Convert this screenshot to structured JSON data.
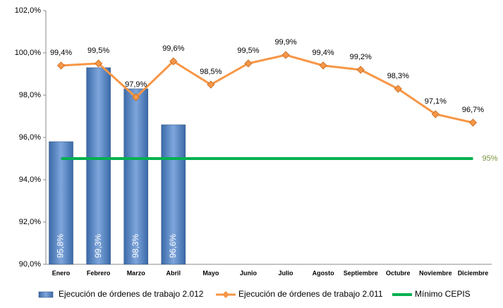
{
  "chart_data": {
    "type": "bar",
    "categories": [
      "Enero",
      "Febrero",
      "Marzo",
      "Abril",
      "Mayo",
      "Junio",
      "Julio",
      "Agosto",
      "Septiembre",
      "Octubre",
      "Noviembre",
      "Diciembre"
    ],
    "series": [
      {
        "name": "Ejecución de órdenes de trabajo 2.012",
        "type": "bar",
        "color": "#4f81bd",
        "values": [
          95.8,
          99.3,
          98.3,
          96.6,
          null,
          null,
          null,
          null,
          null,
          null,
          null,
          null
        ],
        "value_labels": [
          "95,8%",
          "99,3%",
          "98,3%",
          "96,6%",
          null,
          null,
          null,
          null,
          null,
          null,
          null,
          null
        ]
      },
      {
        "name": "Ejecución de órdenes de trabajo 2.011",
        "type": "line",
        "color": "#f79646",
        "values": [
          99.4,
          99.5,
          97.9,
          99.6,
          98.5,
          99.5,
          99.9,
          99.4,
          99.2,
          98.3,
          97.1,
          96.7
        ],
        "value_labels": [
          "99,4%",
          "99,5%",
          "97,9%",
          "99,6%",
          "98,5%",
          "99,5%",
          "99,9%",
          "99,4%",
          "99,2%",
          "98,3%",
          "97,1%",
          "96,7%"
        ]
      },
      {
        "name": "Mínimo CEPIS",
        "type": "line",
        "color": "#00b050",
        "values": [
          95,
          95,
          95,
          95,
          95,
          95,
          95,
          95,
          95,
          95,
          95,
          95
        ],
        "value_labels": [
          null,
          null,
          null,
          null,
          null,
          null,
          null,
          null,
          null,
          null,
          null,
          "95%"
        ]
      }
    ],
    "ylim": [
      90,
      102
    ],
    "yticks": [
      {
        "value": 90,
        "label": "90,0%"
      },
      {
        "value": 92,
        "label": "92,0%"
      },
      {
        "value": 94,
        "label": "94,0%"
      },
      {
        "value": 96,
        "label": "96,0%"
      },
      {
        "value": 98,
        "label": "98,0%"
      },
      {
        "value": 100,
        "label": "100,0%"
      },
      {
        "value": 102,
        "label": "102,0%"
      }
    ],
    "grid": false,
    "legend": "bottom"
  }
}
